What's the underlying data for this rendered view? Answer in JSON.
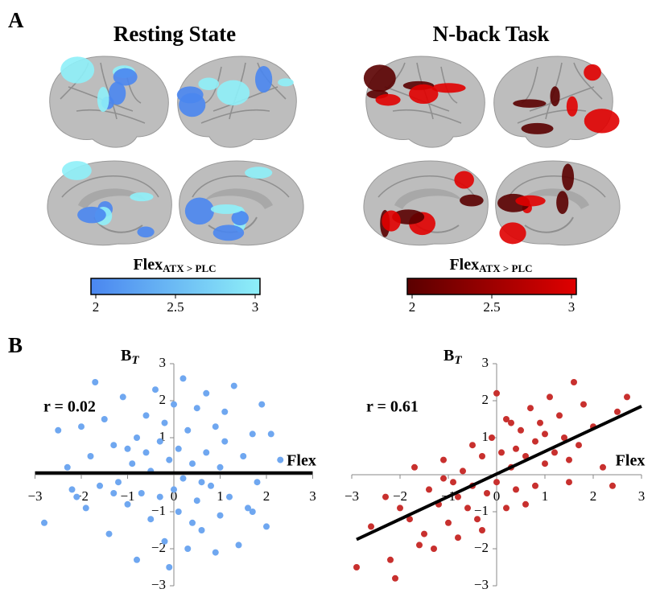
{
  "panel_labels": [
    "A",
    "B"
  ],
  "chart_data": [
    {
      "type": "colorbar",
      "title": "Resting State",
      "label": "Flex",
      "label_sub": "ATX > PLC",
      "colors": [
        "#4a86f0",
        "#8ef0f8"
      ],
      "xlim": [
        2,
        3
      ],
      "xticks": [
        2,
        2.5,
        3
      ]
    },
    {
      "type": "colorbar",
      "title": "N-back Task",
      "label": "Flex",
      "label_sub": "ATX > PLC",
      "colors": [
        "#5a0000",
        "#e00000"
      ],
      "xlim": [
        2,
        3
      ],
      "xticks": [
        2,
        2.5,
        3
      ]
    },
    {
      "type": "scatter",
      "ylabel": "B",
      "ylabel_sub": "T",
      "xlabel": "Flex",
      "annotation": "r = 0.02",
      "color": "#6fa7f0",
      "x": [
        -2.8,
        -2.5,
        -2.3,
        -2.2,
        -2.0,
        -1.9,
        -1.8,
        -1.7,
        -1.6,
        -1.5,
        -1.4,
        -1.3,
        -1.2,
        -1.1,
        -1.0,
        -0.9,
        -0.8,
        -0.8,
        -0.7,
        -0.6,
        -0.5,
        -0.5,
        -0.4,
        -0.3,
        -0.3,
        -0.2,
        -0.1,
        -0.1,
        0.0,
        0.0,
        0.1,
        0.1,
        0.2,
        0.2,
        0.3,
        0.3,
        0.4,
        0.5,
        0.5,
        0.6,
        0.7,
        0.7,
        0.8,
        0.9,
        1.0,
        1.0,
        1.1,
        1.2,
        1.3,
        1.4,
        1.5,
        1.6,
        1.7,
        1.8,
        1.9,
        2.0,
        2.1,
        2.3,
        -1.3,
        -0.6,
        0.4,
        1.1,
        -0.2,
        0.9,
        -1.0,
        1.7,
        -2.1,
        0.6
      ],
      "y": [
        -1.3,
        1.2,
        0.2,
        -0.4,
        1.3,
        -0.9,
        0.5,
        2.5,
        -0.3,
        1.5,
        -1.6,
        0.8,
        -0.2,
        2.1,
        -0.8,
        0.3,
        1.0,
        -2.3,
        -0.5,
        1.6,
        0.1,
        -1.2,
        2.3,
        -0.6,
        0.9,
        -1.8,
        0.4,
        -2.5,
        1.9,
        -0.4,
        0.7,
        -1.0,
        2.6,
        -0.1,
        1.2,
        -2.0,
        0.3,
        -0.7,
        1.8,
        -1.5,
        0.6,
        2.2,
        -0.3,
        1.3,
        -1.1,
        0.2,
        1.7,
        -0.6,
        2.4,
        -1.9,
        0.5,
        -0.9,
        1.1,
        -0.2,
        1.9,
        -1.4,
        1.1,
        0.4,
        -0.5,
        0.6,
        -1.3,
        0.9,
        1.4,
        -2.1,
        0.7,
        -1.0,
        -0.6,
        -0.2
      ],
      "fit_line": {
        "x": [
          -3,
          3
        ],
        "y": [
          0.05,
          0.05
        ]
      },
      "xlim": [
        -3,
        3
      ],
      "ylim": [
        -3,
        3
      ],
      "xticks": [
        {
          "value": -3,
          "label": "−3"
        },
        {
          "value": -2,
          "label": "−2"
        },
        {
          "value": -1,
          "label": "−1"
        },
        0,
        1,
        2,
        3
      ],
      "yticks": [
        {
          "value": -3,
          "label": "−3"
        },
        {
          "value": -2,
          "label": "−2"
        },
        {
          "value": -1,
          "label": "−1"
        },
        1,
        2,
        3
      ]
    },
    {
      "type": "scatter",
      "ylabel": "B",
      "ylabel_sub": "T",
      "xlabel": "Flex",
      "annotation": "r = 0.61",
      "color": "#c8302e",
      "x": [
        -2.9,
        -2.6,
        -2.3,
        -2.1,
        -2.0,
        -1.8,
        -1.7,
        -1.5,
        -1.4,
        -1.3,
        -1.2,
        -1.1,
        -1.0,
        -0.9,
        -0.8,
        -0.7,
        -0.6,
        -0.5,
        -0.5,
        -0.4,
        -0.3,
        -0.2,
        -0.1,
        0.0,
        0.0,
        0.1,
        0.2,
        0.3,
        0.3,
        0.4,
        0.5,
        0.6,
        0.7,
        0.8,
        0.8,
        0.9,
        1.0,
        1.1,
        1.2,
        1.3,
        1.4,
        1.5,
        1.6,
        1.7,
        1.8,
        2.0,
        2.2,
        2.5,
        2.7,
        -1.6,
        -0.8,
        0.2,
        0.6,
        1.0,
        -0.3,
        1.5,
        -1.1,
        0.4,
        2.4,
        -2.2
      ],
      "y": [
        -2.5,
        -1.4,
        -0.6,
        -2.8,
        -0.9,
        -1.2,
        0.2,
        -1.6,
        -0.4,
        -2.0,
        -0.8,
        0.4,
        -1.3,
        -0.2,
        -1.7,
        0.1,
        -0.9,
        0.8,
        -0.3,
        -1.2,
        0.5,
        -0.5,
        1.0,
        2.2,
        -0.2,
        0.6,
        -0.9,
        1.4,
        0.2,
        -0.4,
        1.2,
        0.5,
        1.8,
        -0.3,
        0.9,
        1.4,
        0.3,
        2.1,
        0.6,
        1.6,
        1.0,
        -0.2,
        2.5,
        0.8,
        1.9,
        1.3,
        0.2,
        1.7,
        2.1,
        -1.9,
        -0.6,
        1.5,
        -0.8,
        1.1,
        -1.5,
        0.4,
        -0.1,
        0.7,
        -0.3,
        -2.3
      ],
      "fit_line": {
        "x": [
          -2.9,
          3
        ],
        "y": [
          -1.75,
          1.85
        ]
      },
      "xlim": [
        -3,
        3
      ],
      "ylim": [
        -3,
        3
      ],
      "xticks": [
        {
          "value": -3,
          "label": "−3"
        },
        {
          "value": -2,
          "label": "−2"
        },
        {
          "value": -1,
          "label": "−1"
        },
        0,
        1,
        2,
        3
      ],
      "yticks": [
        {
          "value": -3,
          "label": "−3"
        },
        {
          "value": -2,
          "label": "−2"
        },
        {
          "value": -1,
          "label": "−1"
        },
        1,
        2,
        3
      ]
    }
  ]
}
